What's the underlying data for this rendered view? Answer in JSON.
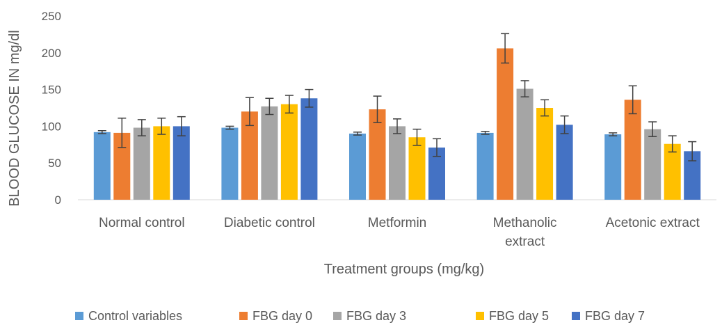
{
  "chart_data": {
    "type": "bar",
    "title": "",
    "xlabel": "Treatment groups (mg/kg)",
    "ylabel": "BLOOD GLUCOSE IN mg/dl",
    "ylim": [
      0,
      250
    ],
    "yticks": [
      0,
      50,
      100,
      150,
      200,
      250
    ],
    "grid": false,
    "legend_position": "bottom",
    "categories": [
      [
        "Normal control"
      ],
      [
        "Diabetic control"
      ],
      [
        "Metformin"
      ],
      [
        "Methanolic",
        "extract"
      ],
      [
        "Acetonic extract"
      ]
    ],
    "series": [
      {
        "name": "Control variables",
        "color": "#5B9BD5",
        "values": [
          92,
          98,
          90,
          91,
          89
        ],
        "errors": [
          2,
          2,
          2,
          2,
          2
        ]
      },
      {
        "name": "FBG day 0",
        "color": "#ED7D31",
        "values": [
          91,
          120,
          123,
          206,
          136
        ],
        "errors": [
          20,
          19,
          18,
          20,
          19
        ]
      },
      {
        "name": "FBG day 3",
        "color": "#A5A5A5",
        "values": [
          98,
          127,
          100,
          151,
          96
        ],
        "errors": [
          11,
          11,
          10,
          11,
          10
        ]
      },
      {
        "name": "FBG day 5",
        "color": "#FFC000",
        "values": [
          100,
          130,
          85,
          125,
          76
        ],
        "errors": [
          11,
          12,
          11,
          11,
          11
        ]
      },
      {
        "name": "FBG day 7",
        "color": "#4472C4",
        "values": [
          100,
          138,
          71,
          102,
          66
        ],
        "errors": [
          13,
          12,
          12,
          12,
          13
        ]
      }
    ]
  }
}
